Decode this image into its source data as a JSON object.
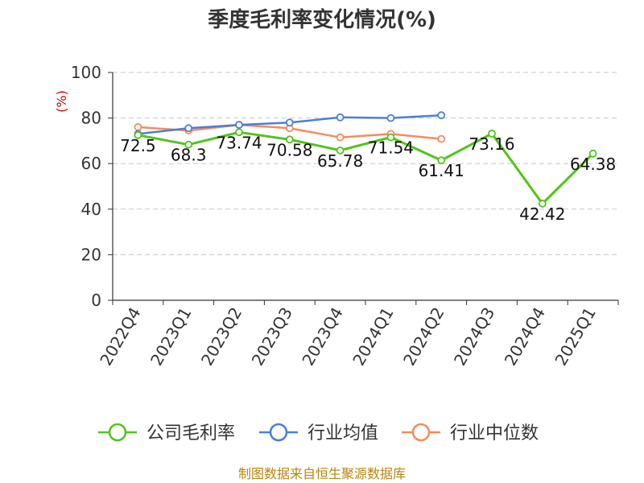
{
  "chart_data": {
    "type": "line",
    "title": "季度毛利率变化情况(%)",
    "ylabel": "(%)",
    "ylim": [
      0,
      100
    ],
    "yticks": [
      0,
      20,
      40,
      60,
      80,
      100
    ],
    "grid": true,
    "legend_position": "bottom",
    "categories": [
      "2022Q4",
      "2023Q1",
      "2023Q2",
      "2023Q3",
      "2023Q4",
      "2024Q1",
      "2024Q2",
      "2024Q3",
      "2024Q4",
      "2025Q1"
    ],
    "series": [
      {
        "name": "公司毛利率",
        "color": "#52c41a",
        "values": [
          72.5,
          68.3,
          73.74,
          70.58,
          65.78,
          71.54,
          61.41,
          73.16,
          42.42,
          64.38
        ],
        "labels": [
          "72.5",
          "68.3",
          "73.74",
          "70.58",
          "65.78",
          "71.54",
          "61.41",
          "73.16",
          "42.42",
          "64.38"
        ]
      },
      {
        "name": "行业均值",
        "color": "#4a7fd8",
        "values": [
          73.0,
          75.5,
          77.0,
          78.0,
          80.3,
          80.0,
          81.2,
          null,
          null,
          null
        ]
      },
      {
        "name": "行业中位数",
        "color": "#f98a5b",
        "values": [
          76.0,
          74.5,
          77.0,
          75.5,
          71.5,
          73.0,
          70.8,
          null,
          null,
          null
        ]
      }
    ]
  },
  "source": "制图数据来自恒生聚源数据库"
}
